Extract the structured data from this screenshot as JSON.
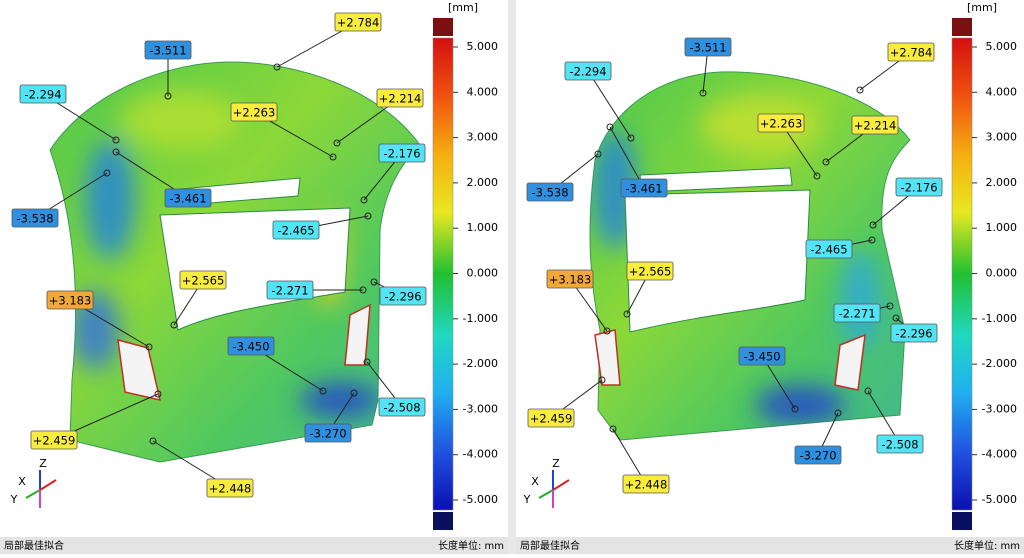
{
  "panels": [
    {
      "unit": "[mm]",
      "scale_ticks": [
        "5.000",
        "4.000",
        "3.000",
        "2.000",
        "1.000",
        "0.000",
        "-1.000",
        "-2.000",
        "-3.000",
        "-4.000",
        "-5.000"
      ],
      "callouts": [
        "+2.784",
        "-3.511",
        "-2.294",
        "+2.263",
        "+2.214",
        "-2.176",
        "-3.538",
        "-3.461",
        "-2.465",
        "+2.565",
        "-2.271",
        "-2.296",
        "+3.183",
        "-3.450",
        "-2.508",
        "-3.270",
        "+2.459",
        "+2.448"
      ],
      "axes": {
        "x": "X",
        "y": "Y",
        "z": "Z"
      },
      "footer": {
        "left": "局部最佳拟合",
        "right": "长度单位: mm"
      }
    },
    {
      "unit": "[mm]",
      "scale_ticks": [
        "5.000",
        "4.000",
        "3.000",
        "2.000",
        "1.000",
        "0.000",
        "-1.000",
        "-2.000",
        "-3.000",
        "-4.000",
        "-5.000"
      ],
      "callouts": [
        "+2.784",
        "-3.511",
        "-2.294",
        "+2.263",
        "+2.214",
        "-2.176",
        "-3.538",
        "-3.461",
        "-2.465",
        "+2.565",
        "-2.271",
        "-2.296",
        "+3.183",
        "-3.450",
        "-2.508",
        "-3.270",
        "+2.459",
        "+2.448"
      ],
      "axes": {
        "x": "X",
        "y": "Y",
        "z": "Z"
      },
      "footer": {
        "left": "局部最佳拟合",
        "right": "长度单位: mm"
      }
    }
  ]
}
